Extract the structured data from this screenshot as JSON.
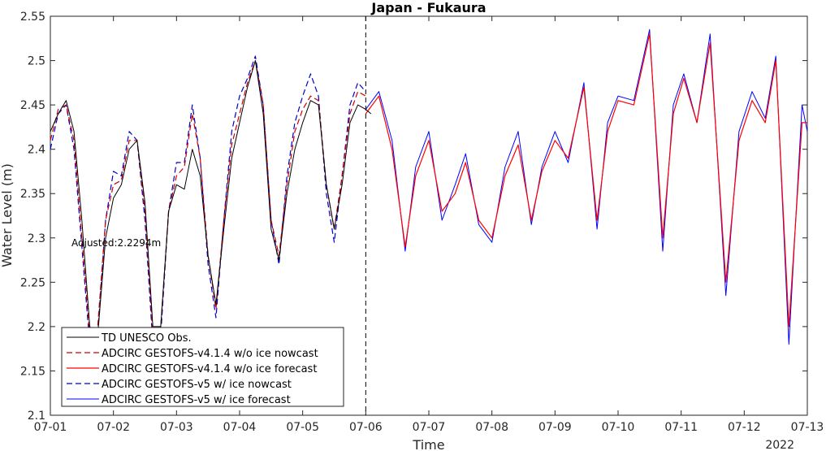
{
  "chart_data": {
    "type": "line",
    "title": "Japan - Fukaura",
    "xlabel": "Time",
    "ylabel": "Water Level (m)",
    "year_label": "2022",
    "annotation": "Adjusted:2.2294m",
    "x_tick_labels": [
      "07-01",
      "07-02",
      "07-03",
      "07-04",
      "07-05",
      "07-06",
      "07-07",
      "07-08",
      "07-09",
      "07-10",
      "07-11",
      "07-12",
      "07-13"
    ],
    "xlim": [
      "2022-07-01 00:00",
      "2022-07-13 00:00"
    ],
    "ylim": [
      2.1,
      2.55
    ],
    "y_ticks": [
      2.1,
      2.15,
      2.2,
      2.25,
      2.3,
      2.35,
      2.4,
      2.45,
      2.5,
      2.55
    ],
    "nowcast_forecast_split": "2022-07-06 00:00",
    "legend_position": "bottom-left",
    "colors": {
      "obs": "#000000",
      "v4_nowcast": "#cc0000",
      "v4_forecast": "#ff0000",
      "v5_nowcast": "#0000cc",
      "v5_forecast": "#0000ff"
    },
    "series": [
      {
        "name": "TD UNESCO Obs.",
        "key": "obs",
        "style": "solid-thin",
        "x": [
          "2022-07-01 00:00",
          "2022-07-01 03:00",
          "2022-07-01 06:00",
          "2022-07-01 09:00",
          "2022-07-01 12:00",
          "2022-07-01 15:00",
          "2022-07-01 18:00",
          "2022-07-01 21:00",
          "2022-07-02 00:00",
          "2022-07-02 03:00",
          "2022-07-02 06:00",
          "2022-07-02 09:00",
          "2022-07-02 12:00",
          "2022-07-02 15:00",
          "2022-07-02 18:00",
          "2022-07-02 21:00",
          "2022-07-03 00:00",
          "2022-07-03 03:00",
          "2022-07-03 06:00",
          "2022-07-03 09:00",
          "2022-07-03 12:00",
          "2022-07-03 15:00",
          "2022-07-03 18:00",
          "2022-07-03 21:00",
          "2022-07-04 00:00",
          "2022-07-04 03:00",
          "2022-07-04 06:00",
          "2022-07-04 09:00",
          "2022-07-04 12:00",
          "2022-07-04 15:00",
          "2022-07-04 18:00",
          "2022-07-04 21:00",
          "2022-07-05 00:00",
          "2022-07-05 03:00",
          "2022-07-05 06:00",
          "2022-07-05 09:00",
          "2022-07-05 12:00",
          "2022-07-05 15:00",
          "2022-07-05 18:00",
          "2022-07-05 21:00",
          "2022-07-06 00:00",
          "2022-07-06 02:00"
        ],
        "y": [
          2.42,
          2.44,
          2.455,
          2.42,
          2.32,
          2.2,
          2.19,
          2.3,
          2.345,
          2.36,
          2.4,
          2.41,
          2.34,
          2.2,
          2.2,
          2.33,
          2.36,
          2.355,
          2.4,
          2.37,
          2.28,
          2.225,
          2.31,
          2.39,
          2.43,
          2.47,
          2.5,
          2.44,
          2.31,
          2.275,
          2.35,
          2.4,
          2.43,
          2.455,
          2.45,
          2.36,
          2.31,
          2.36,
          2.43,
          2.45,
          2.445,
          2.44
        ]
      },
      {
        "name": "ADCIRC GESTOFS-v4.1.4 w/o ice nowcast",
        "key": "v4_nowcast",
        "style": "dashed",
        "x": [
          "2022-07-01 00:00",
          "2022-07-01 03:00",
          "2022-07-01 06:00",
          "2022-07-01 09:00",
          "2022-07-01 12:00",
          "2022-07-01 15:00",
          "2022-07-01 18:00",
          "2022-07-01 21:00",
          "2022-07-02 00:00",
          "2022-07-02 03:00",
          "2022-07-02 06:00",
          "2022-07-02 09:00",
          "2022-07-02 12:00",
          "2022-07-02 15:00",
          "2022-07-02 18:00",
          "2022-07-02 21:00",
          "2022-07-03 00:00",
          "2022-07-03 03:00",
          "2022-07-03 06:00",
          "2022-07-03 09:00",
          "2022-07-03 12:00",
          "2022-07-03 15:00",
          "2022-07-03 18:00",
          "2022-07-03 21:00",
          "2022-07-04 00:00",
          "2022-07-04 03:00",
          "2022-07-04 06:00",
          "2022-07-04 09:00",
          "2022-07-04 12:00",
          "2022-07-04 15:00",
          "2022-07-04 18:00",
          "2022-07-04 21:00",
          "2022-07-05 00:00",
          "2022-07-05 03:00",
          "2022-07-05 06:00",
          "2022-07-05 09:00",
          "2022-07-05 12:00",
          "2022-07-05 15:00",
          "2022-07-05 18:00",
          "2022-07-05 21:00",
          "2022-07-06 00:00"
        ],
        "y": [
          2.41,
          2.445,
          2.45,
          2.41,
          2.3,
          2.19,
          2.2,
          2.32,
          2.36,
          2.365,
          2.41,
          2.41,
          2.33,
          2.19,
          2.2,
          2.33,
          2.37,
          2.38,
          2.44,
          2.39,
          2.28,
          2.22,
          2.32,
          2.405,
          2.44,
          2.475,
          2.5,
          2.45,
          2.32,
          2.28,
          2.36,
          2.42,
          2.445,
          2.46,
          2.455,
          2.36,
          2.31,
          2.37,
          2.44,
          2.465,
          2.46
        ]
      },
      {
        "name": "ADCIRC GESTOFS-v4.1.4 w/o ice forecast",
        "key": "v4_forecast",
        "style": "solid",
        "x": [
          "2022-07-06 00:00",
          "2022-07-06 05:00",
          "2022-07-06 10:00",
          "2022-07-06 15:00",
          "2022-07-06 19:00",
          "2022-07-07 00:00",
          "2022-07-07 05:00",
          "2022-07-07 10:00",
          "2022-07-07 14:00",
          "2022-07-07 19:00",
          "2022-07-08 00:00",
          "2022-07-08 05:00",
          "2022-07-08 10:00",
          "2022-07-08 15:00",
          "2022-07-08 19:00",
          "2022-07-09 00:00",
          "2022-07-09 05:00",
          "2022-07-09 11:00",
          "2022-07-09 16:00",
          "2022-07-09 20:00",
          "2022-07-10 00:00",
          "2022-07-10 06:00",
          "2022-07-10 12:00",
          "2022-07-10 17:00",
          "2022-07-10 21:00",
          "2022-07-11 01:00",
          "2022-07-11 06:00",
          "2022-07-11 11:00",
          "2022-07-11 17:00",
          "2022-07-11 22:00",
          "2022-07-12 03:00",
          "2022-07-12 08:00",
          "2022-07-12 12:00",
          "2022-07-12 17:00",
          "2022-07-12 22:00",
          "2022-07-13 00:00"
        ],
        "y": [
          2.44,
          2.46,
          2.4,
          2.29,
          2.37,
          2.41,
          2.33,
          2.35,
          2.385,
          2.32,
          2.3,
          2.37,
          2.405,
          2.32,
          2.375,
          2.41,
          2.39,
          2.47,
          2.32,
          2.42,
          2.455,
          2.45,
          2.53,
          2.3,
          2.44,
          2.48,
          2.43,
          2.52,
          2.25,
          2.41,
          2.455,
          2.43,
          2.5,
          2.2,
          2.43,
          2.43
        ]
      },
      {
        "name": "ADCIRC GESTOFS-v5 w/ ice nowcast",
        "key": "v5_nowcast",
        "style": "dashed",
        "x": [
          "2022-07-01 00:00",
          "2022-07-01 03:00",
          "2022-07-01 06:00",
          "2022-07-01 09:00",
          "2022-07-01 12:00",
          "2022-07-01 15:00",
          "2022-07-01 18:00",
          "2022-07-01 21:00",
          "2022-07-02 00:00",
          "2022-07-02 03:00",
          "2022-07-02 06:00",
          "2022-07-02 09:00",
          "2022-07-02 12:00",
          "2022-07-02 15:00",
          "2022-07-02 18:00",
          "2022-07-02 21:00",
          "2022-07-03 00:00",
          "2022-07-03 03:00",
          "2022-07-03 06:00",
          "2022-07-03 09:00",
          "2022-07-03 12:00",
          "2022-07-03 15:00",
          "2022-07-03 18:00",
          "2022-07-03 21:00",
          "2022-07-04 00:00",
          "2022-07-04 03:00",
          "2022-07-04 06:00",
          "2022-07-04 09:00",
          "2022-07-04 12:00",
          "2022-07-04 15:00",
          "2022-07-04 18:00",
          "2022-07-04 21:00",
          "2022-07-05 00:00",
          "2022-07-05 03:00",
          "2022-07-05 06:00",
          "2022-07-05 09:00",
          "2022-07-05 12:00",
          "2022-07-05 15:00",
          "2022-07-05 18:00",
          "2022-07-05 21:00",
          "2022-07-06 00:00"
        ],
        "y": [
          2.4,
          2.44,
          2.45,
          2.4,
          2.29,
          2.18,
          2.19,
          2.32,
          2.375,
          2.37,
          2.42,
          2.41,
          2.32,
          2.18,
          2.19,
          2.33,
          2.385,
          2.385,
          2.45,
          2.39,
          2.27,
          2.21,
          2.32,
          2.42,
          2.46,
          2.48,
          2.505,
          2.45,
          2.32,
          2.27,
          2.37,
          2.43,
          2.46,
          2.485,
          2.46,
          2.35,
          2.295,
          2.37,
          2.45,
          2.475,
          2.465
        ]
      },
      {
        "name": "ADCIRC GESTOFS-v5 w/ ice forecast",
        "key": "v5_forecast",
        "style": "solid-thin",
        "x": [
          "2022-07-06 00:00",
          "2022-07-06 05:00",
          "2022-07-06 10:00",
          "2022-07-06 15:00",
          "2022-07-06 19:00",
          "2022-07-07 00:00",
          "2022-07-07 05:00",
          "2022-07-07 10:00",
          "2022-07-07 14:00",
          "2022-07-07 19:00",
          "2022-07-08 00:00",
          "2022-07-08 05:00",
          "2022-07-08 10:00",
          "2022-07-08 15:00",
          "2022-07-08 19:00",
          "2022-07-09 00:00",
          "2022-07-09 05:00",
          "2022-07-09 11:00",
          "2022-07-09 16:00",
          "2022-07-09 20:00",
          "2022-07-10 00:00",
          "2022-07-10 06:00",
          "2022-07-10 12:00",
          "2022-07-10 17:00",
          "2022-07-10 21:00",
          "2022-07-11 01:00",
          "2022-07-11 06:00",
          "2022-07-11 11:00",
          "2022-07-11 17:00",
          "2022-07-11 22:00",
          "2022-07-12 03:00",
          "2022-07-12 08:00",
          "2022-07-12 12:00",
          "2022-07-12 17:00",
          "2022-07-12 22:00",
          "2022-07-13 00:00"
        ],
        "y": [
          2.445,
          2.465,
          2.41,
          2.285,
          2.38,
          2.42,
          2.32,
          2.36,
          2.395,
          2.315,
          2.295,
          2.38,
          2.42,
          2.315,
          2.38,
          2.42,
          2.385,
          2.475,
          2.31,
          2.43,
          2.46,
          2.455,
          2.535,
          2.285,
          2.45,
          2.485,
          2.43,
          2.53,
          2.235,
          2.42,
          2.465,
          2.435,
          2.505,
          2.18,
          2.45,
          2.42
        ]
      }
    ]
  }
}
